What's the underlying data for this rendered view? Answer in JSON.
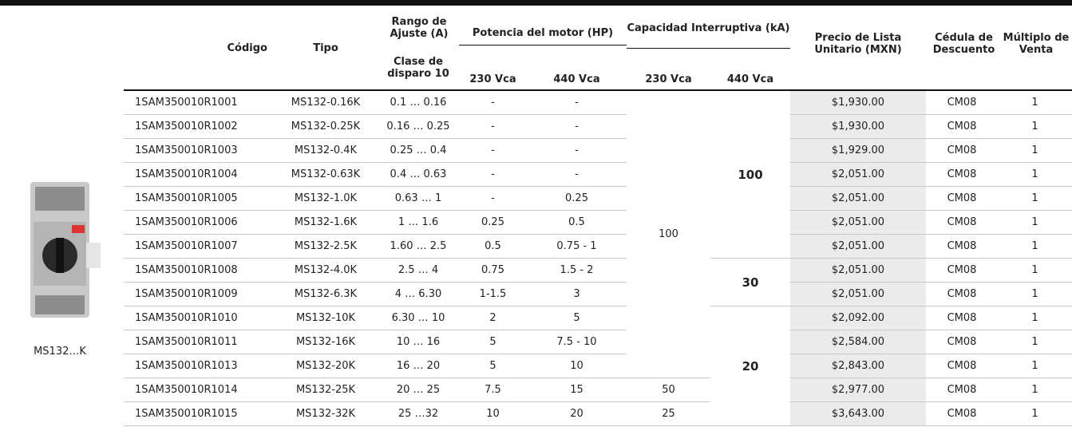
{
  "header": {
    "codigo": "Código",
    "tipo": "Tipo",
    "rango": "Rango de Ajuste (A)",
    "clase": "Clase de disparo 10",
    "potencia": "Potencia del motor (HP)",
    "capacidad": "Capacidad Interruptiva (kA)",
    "hp_230": "230 Vca",
    "hp_440": "440 Vca",
    "ka_230": "230 Vca",
    "ka_440": "440 Vca",
    "precio": "Precio de Lista Unitario (MXN)",
    "cedula": "Cédula de Descuento",
    "multiplo": "Múltiplo de Venta"
  },
  "product_label": "MS132…K",
  "rows": [
    [
      "1SAM350010R1001",
      "MS132-0.16K",
      "0.1 … 0.16",
      "-",
      "-",
      "$1,930.00",
      "CM08",
      "1"
    ],
    [
      "1SAM350010R1002",
      "MS132-0.25K",
      "0.16 … 0.25",
      "-",
      "-",
      "$1,930.00",
      "CM08",
      "1"
    ],
    [
      "1SAM350010R1003",
      "MS132-0.4K",
      "0.25 … 0.4",
      "-",
      "-",
      "$1,929.00",
      "CM08",
      "1"
    ],
    [
      "1SAM350010R1004",
      "MS132-0.63K",
      "0.4 … 0.63",
      "-",
      "-",
      "$2,051.00",
      "CM08",
      "1"
    ],
    [
      "1SAM350010R1005",
      "MS132-1.0K",
      "0.63 … 1",
      "-",
      "0.25",
      "$2,051.00",
      "CM08",
      "1"
    ],
    [
      "1SAM350010R1006",
      "MS132-1.6K",
      "1 … 1.6",
      "0.25",
      "0.5",
      "$2,051.00",
      "CM08",
      "1"
    ],
    [
      "1SAM350010R1007",
      "MS132-2.5K",
      "1.60 … 2.5",
      "0.5",
      "0.75 - 1",
      "$2,051.00",
      "CM08",
      "1"
    ],
    [
      "1SAM350010R1008",
      "MS132-4.0K",
      "2.5 … 4",
      "0.75",
      "1.5 - 2",
      "$2,051.00",
      "CM08",
      "1"
    ],
    [
      "1SAM350010R1009",
      "MS132-6.3K",
      "4 … 6.30",
      "1-1.5",
      "3",
      "$2,051.00",
      "CM08",
      "1"
    ],
    [
      "1SAM350010R1010",
      "MS132-10K",
      "6.30 … 10",
      "2",
      "5",
      "$2,092.00",
      "CM08",
      "1"
    ],
    [
      "1SAM350010R1011",
      "MS132-16K",
      "10 … 16",
      "5",
      "7.5 - 10",
      "$2,584.00",
      "CM08",
      "1"
    ],
    [
      "1SAM350010R1013",
      "MS132-20K",
      "16 … 20",
      "5",
      "10",
      "$2,843.00",
      "CM08",
      "1"
    ],
    [
      "1SAM350010R1014",
      "MS132-25K",
      "20 … 25",
      "7.5",
      "15",
      "$2,977.00",
      "CM08",
      "1"
    ],
    [
      "1SAM350010R1015",
      "MS132-32K",
      "25 …32",
      "10",
      "20",
      "$3,643.00",
      "CM08",
      "1"
    ]
  ],
  "ka_230": [
    "100",
    "50",
    "25"
  ],
  "ka_440": [
    "100",
    "30",
    "20"
  ]
}
